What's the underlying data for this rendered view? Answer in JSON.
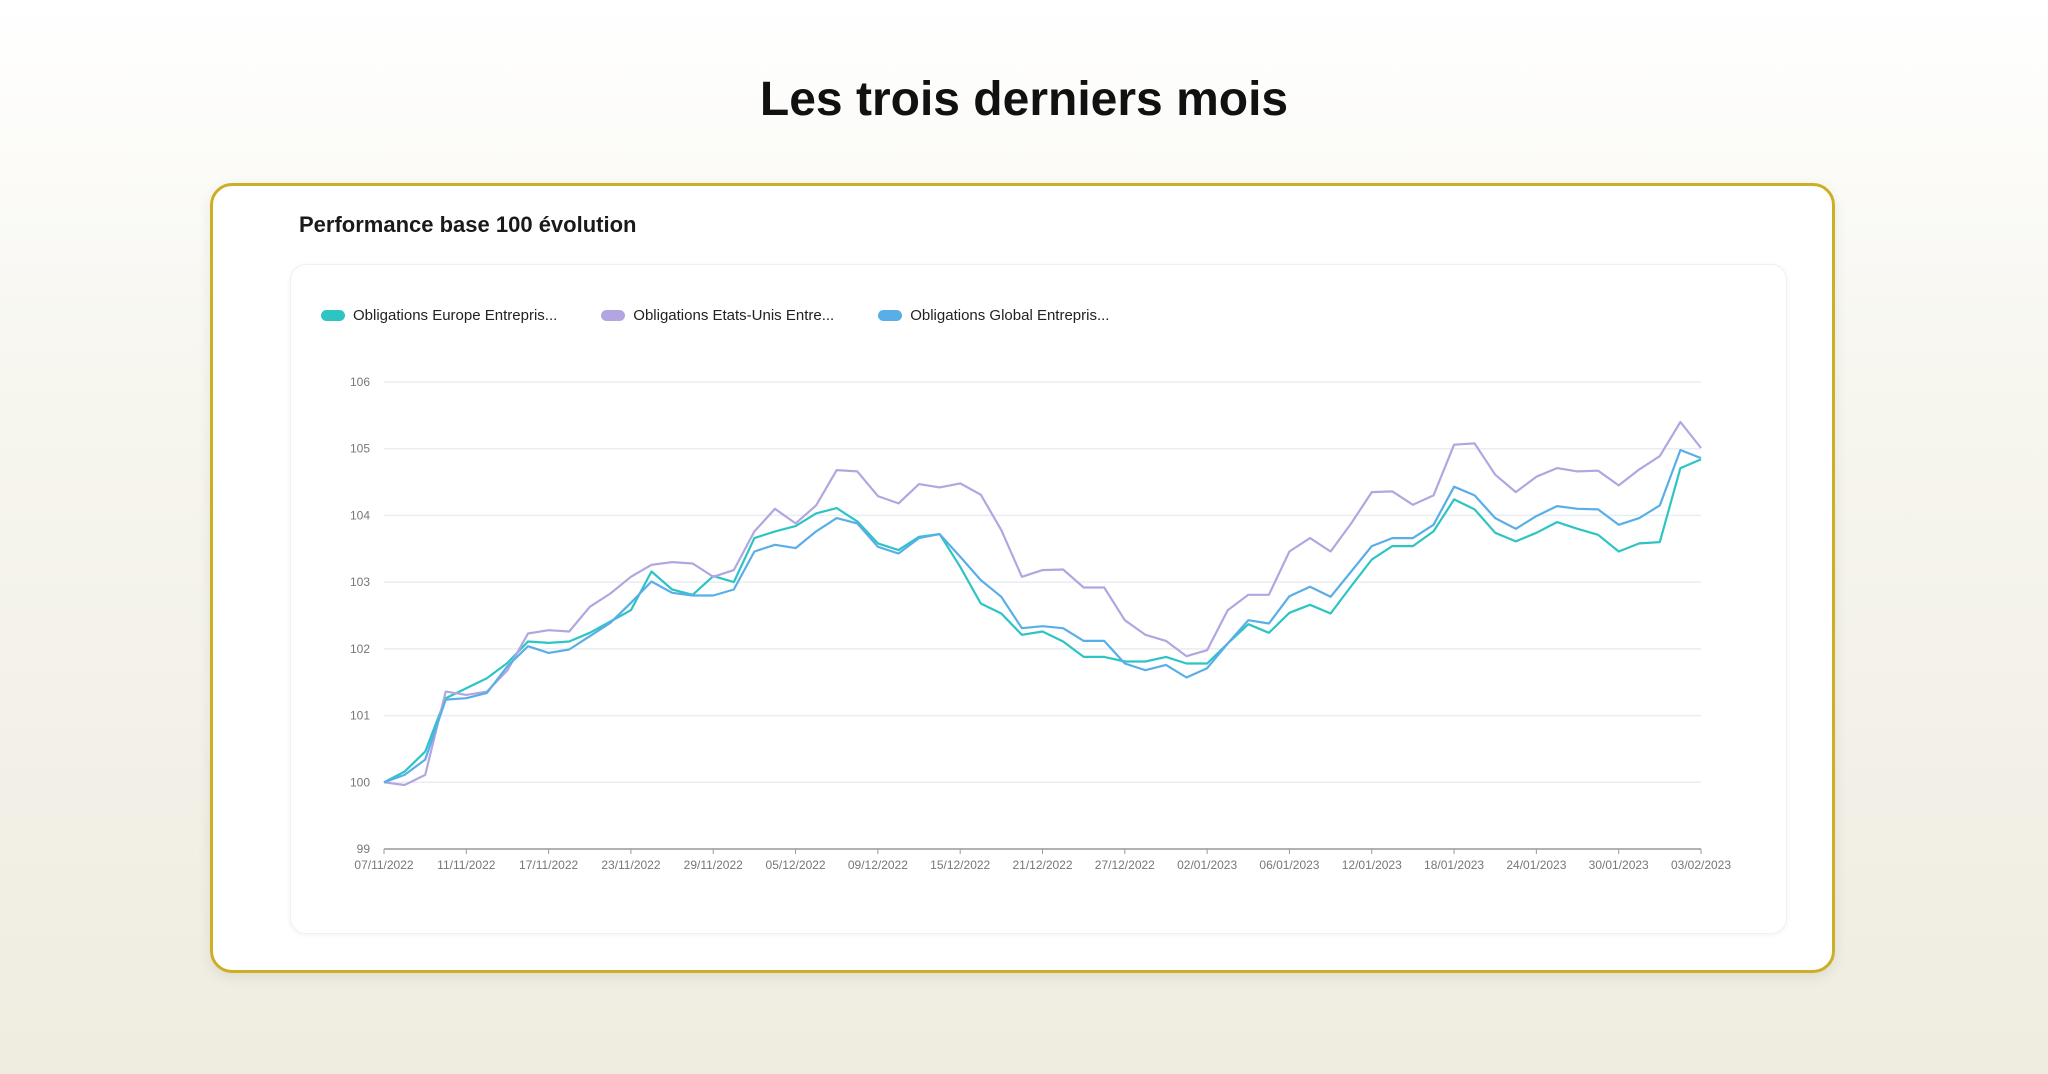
{
  "page": {
    "title": "Les trois derniers mois"
  },
  "card": {
    "title": "Performance base 100 évolution"
  },
  "colors": {
    "card_border": "#cbb025",
    "grid": "#e8edf2",
    "axis": "#999999"
  },
  "chart_data": {
    "type": "line",
    "title": "Performance base 100 évolution",
    "ylim": [
      99,
      106
    ],
    "y_ticks": [
      "99",
      "100",
      "101",
      "102",
      "103",
      "104",
      "105",
      "106"
    ],
    "x_ticks": [
      "07/11/2022",
      "11/11/2022",
      "17/11/2022",
      "23/11/2022",
      "29/11/2022",
      "05/12/2022",
      "09/12/2022",
      "15/12/2022",
      "21/12/2022",
      "27/12/2022",
      "02/01/2023",
      "06/01/2023",
      "12/01/2023",
      "18/01/2023",
      "24/01/2023",
      "30/01/2023",
      "03/02/2023"
    ],
    "grid": true,
    "legend_position": "top-left",
    "series": [
      {
        "name": "Obligations Europe Entrepris...",
        "color": "#2ec4c4",
        "values": [
          100,
          100.16,
          100.46,
          101.26,
          101.41,
          101.56,
          101.79,
          102.11,
          102.09,
          102.11,
          102.24,
          102.41,
          102.58,
          103.16,
          102.89,
          102.81,
          103.09,
          103.0,
          103.66,
          103.76,
          103.84,
          104.03,
          104.11,
          103.91,
          103.58,
          103.48,
          103.68,
          103.72,
          103.23,
          102.68,
          102.53,
          102.21,
          102.26,
          102.11,
          101.88,
          101.88,
          101.81,
          101.81,
          101.88,
          101.78,
          101.78,
          102.08,
          102.37,
          102.24,
          102.54,
          102.66,
          102.53,
          102.94,
          103.34,
          103.54,
          103.54,
          103.76,
          104.24,
          104.09,
          103.74,
          103.61,
          103.74,
          103.9,
          103.8,
          103.71,
          103.46,
          103.58,
          103.6,
          104.71,
          104.84
        ]
      },
      {
        "name": "Obligations Etats-Unis Entre...",
        "color": "#b3a6e0",
        "values": [
          100,
          99.96,
          100.11,
          101.36,
          101.31,
          101.36,
          101.68,
          102.23,
          102.28,
          102.26,
          102.63,
          102.83,
          103.08,
          103.26,
          103.3,
          103.28,
          103.08,
          103.18,
          103.76,
          104.1,
          103.88,
          104.15,
          104.68,
          104.66,
          104.29,
          104.18,
          104.47,
          104.42,
          104.48,
          104.31,
          103.78,
          103.08,
          103.18,
          103.19,
          102.92,
          102.92,
          102.43,
          102.21,
          102.12,
          101.89,
          101.98,
          102.58,
          102.81,
          102.81,
          103.46,
          103.66,
          103.46,
          103.88,
          104.35,
          104.36,
          104.16,
          104.3,
          105.06,
          105.08,
          104.61,
          104.35,
          104.58,
          104.71,
          104.66,
          104.67,
          104.45,
          104.69,
          104.89,
          105.4,
          105.01
        ]
      },
      {
        "name": "Obligations Global Entrepris...",
        "color": "#5aaee8",
        "values": [
          100,
          100.11,
          100.34,
          101.24,
          101.26,
          101.34,
          101.74,
          102.04,
          101.94,
          101.99,
          102.19,
          102.39,
          102.69,
          103.01,
          102.84,
          102.8,
          102.8,
          102.89,
          103.46,
          103.56,
          103.51,
          103.76,
          103.96,
          103.88,
          103.53,
          103.43,
          103.66,
          103.72,
          103.38,
          103.03,
          102.78,
          102.31,
          102.34,
          102.31,
          102.12,
          102.12,
          101.78,
          101.68,
          101.76,
          101.57,
          101.71,
          102.08,
          102.43,
          102.38,
          102.79,
          102.93,
          102.78,
          103.16,
          103.54,
          103.66,
          103.66,
          103.86,
          104.43,
          104.3,
          103.96,
          103.8,
          103.99,
          104.14,
          104.1,
          104.09,
          103.86,
          103.96,
          104.15,
          104.98,
          104.86
        ]
      }
    ]
  }
}
